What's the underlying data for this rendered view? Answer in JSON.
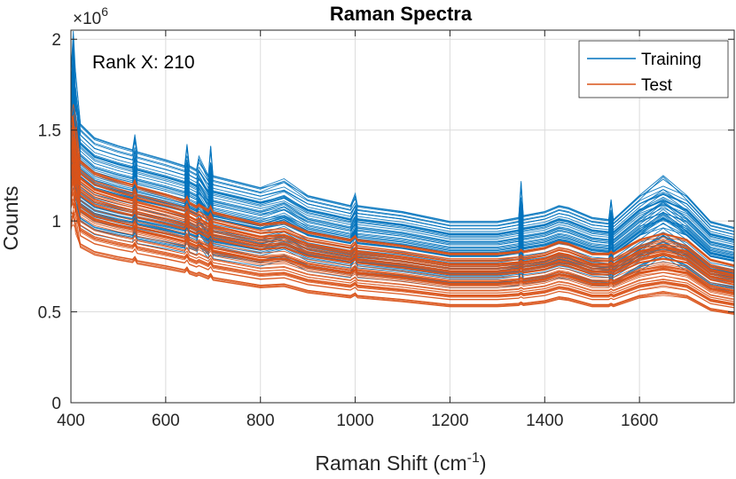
{
  "chart_data": {
    "type": "line",
    "title": "Raman Spectra",
    "xlabel": "Raman Shift (cm",
    "xlabel_sup": "-1",
    "xlabel_end": ")",
    "ylabel": "Counts",
    "y_exponent_base": "×10",
    "y_exponent_power": "6",
    "xlim": [
      400,
      1800
    ],
    "ylim": [
      0,
      2050000
    ],
    "x_ticks": [
      400,
      600,
      800,
      1000,
      1200,
      1400,
      1600
    ],
    "y_ticks": [
      0,
      500000,
      1000000,
      1500000,
      2000000
    ],
    "y_tick_labels": [
      "0",
      "0.5",
      "1",
      "1.5",
      "2"
    ],
    "grid": true,
    "legend_position": "top-right",
    "annotation": "Rank X: 210",
    "x": [
      400,
      405,
      410,
      420,
      450,
      500,
      530,
      535,
      540,
      600,
      640,
      645,
      650,
      665,
      670,
      690,
      695,
      700,
      800,
      850,
      900,
      990,
      1000,
      1005,
      1100,
      1200,
      1300,
      1345,
      1350,
      1355,
      1400,
      1430,
      1450,
      1500,
      1535,
      1540,
      1545,
      1600,
      1650,
      1700,
      1750,
      1800
    ],
    "series": [
      {
        "name": "Training",
        "color": "#0072BD",
        "values": [
          1700000,
          1900000,
          1600000,
          1400000,
          1330000,
          1290000,
          1270000,
          1360000,
          1260000,
          1220000,
          1190000,
          1320000,
          1190000,
          1170000,
          1250000,
          1140000,
          1320000,
          1140000,
          1080000,
          1130000,
          1040000,
          990000,
          1060000,
          990000,
          960000,
          910000,
          910000,
          930000,
          1140000,
          940000,
          960000,
          990000,
          980000,
          930000,
          920000,
          1040000,
          920000,
          1040000,
          1160000,
          1040000,
          910000,
          880000
        ],
        "n_lines": 62,
        "offset_range": [
          -420000,
          130000
        ],
        "peak_scale_range": [
          0.1,
          1.0
        ]
      },
      {
        "name": "Test",
        "color": "#D95319",
        "values": [
          1450000,
          1700000,
          1400000,
          1230000,
          1170000,
          1130000,
          1110000,
          1150000,
          1100000,
          1060000,
          1030000,
          1050000,
          1020000,
          1000000,
          1010000,
          980000,
          1010000,
          970000,
          910000,
          920000,
          870000,
          830000,
          850000,
          830000,
          800000,
          760000,
          760000,
          770000,
          780000,
          770000,
          790000,
          820000,
          810000,
          760000,
          760000,
          770000,
          760000,
          830000,
          950000,
          830000,
          730000,
          700000
        ],
        "n_lines": 70,
        "offset_range": [
          -400000,
          110000
        ],
        "peak_scale_range": [
          0.0,
          0.15
        ]
      }
    ]
  }
}
